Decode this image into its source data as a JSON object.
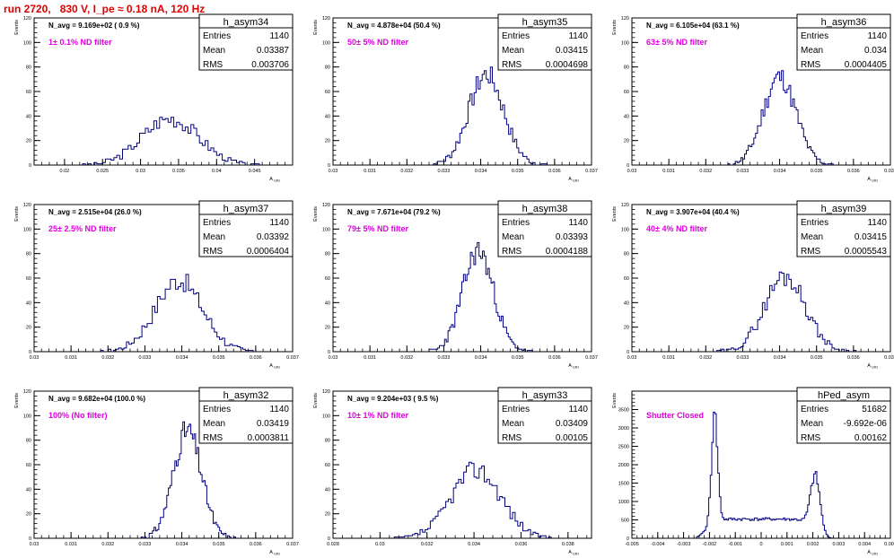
{
  "page_title": "run 2720,   830 V, I_pe ≈ 0.18 nA, 120 Hz",
  "stat_labels": {
    "entries": "Entries",
    "mean": "Mean",
    "rms": "RMS"
  },
  "colors": {
    "hist": "#000080",
    "annotation": "#e000e0",
    "title": "#e00000",
    "frame": "#000000"
  },
  "chart_data": [
    {
      "type": "histogram",
      "hist_name": "h_asym34",
      "n_avg": "N_avg = 9.169e+02 ( 0.9 %)",
      "filter": "1± 0.1% ND filter",
      "entries": "1140",
      "mean": "0.03387",
      "rms": "0.003706",
      "ylabel": "Events",
      "xlabel": "A_UID",
      "xlim": [
        0.016,
        0.05
      ],
      "ylim": [
        0,
        120
      ],
      "xticks": [
        0.02,
        0.025,
        0.03,
        0.035,
        0.04,
        0.045
      ],
      "xtick_labels": [
        "0.02",
        "0.025",
        "0.03",
        "0.035",
        "0.04",
        "0.045"
      ],
      "yticks": [
        0,
        20,
        40,
        60,
        80,
        100,
        120
      ],
      "grid": false,
      "shape": {
        "mu": 0.0339,
        "sigma": 0.0037,
        "peak": 38,
        "lo": 0.022,
        "hi": 0.046,
        "bins": 64,
        "seed": 3
      }
    },
    {
      "type": "histogram",
      "hist_name": "h_asym35",
      "n_avg": "N_avg = 4.878e+04 (50.4 %)",
      "filter": "50± 5% ND filter",
      "entries": "1140",
      "mean": "0.03415",
      "rms": "0.0004698",
      "ylabel": "Events",
      "xlabel": "A_UID",
      "xlim": [
        0.03,
        0.037
      ],
      "ylim": [
        0,
        120
      ],
      "xticks": [
        0.03,
        0.031,
        0.032,
        0.033,
        0.034,
        0.035,
        0.036,
        0.037
      ],
      "xtick_labels": [
        "0.03",
        "0.031",
        "0.032",
        "0.033",
        "0.034",
        "0.035",
        "0.036",
        "0.037"
      ],
      "yticks": [
        0,
        20,
        40,
        60,
        80,
        100,
        120
      ],
      "grid": false,
      "shape": {
        "mu": 0.03415,
        "sigma": 0.00047,
        "peak": 74,
        "lo": 0.0325,
        "hi": 0.0358,
        "bins": 60,
        "seed": 7
      }
    },
    {
      "type": "histogram",
      "hist_name": "h_asym36",
      "n_avg": "N_avg = 6.105e+04 (63.1 %)",
      "filter": "63± 5% ND filter",
      "entries": "1140",
      "mean": "0.034",
      "rms": "0.0004405",
      "ylabel": "Events",
      "xlabel": "A_UID",
      "xlim": [
        0.03,
        0.037
      ],
      "ylim": [
        0,
        120
      ],
      "xticks": [
        0.03,
        0.031,
        0.032,
        0.033,
        0.034,
        0.035,
        0.036,
        0.037
      ],
      "xtick_labels": [
        "0.03",
        "0.031",
        "0.032",
        "0.033",
        "0.034",
        "0.035",
        "0.036",
        "0.037"
      ],
      "yticks": [
        0,
        20,
        40,
        60,
        80,
        100,
        120
      ],
      "grid": false,
      "shape": {
        "mu": 0.034,
        "sigma": 0.00044,
        "peak": 72,
        "lo": 0.0326,
        "hi": 0.0356,
        "bins": 60,
        "seed": 11
      }
    },
    {
      "type": "histogram",
      "hist_name": "h_asym37",
      "n_avg": "N_avg = 2.515e+04 (26.0 %)",
      "filter": "25± 2.5% ND filter",
      "entries": "1140",
      "mean": "0.03392",
      "rms": "0.0006404",
      "ylabel": "Events",
      "xlabel": "A_UID",
      "xlim": [
        0.03,
        0.037
      ],
      "ylim": [
        0,
        120
      ],
      "xticks": [
        0.03,
        0.031,
        0.032,
        0.033,
        0.034,
        0.035,
        0.036,
        0.037
      ],
      "xtick_labels": [
        "0.03",
        "0.031",
        "0.032",
        "0.033",
        "0.034",
        "0.035",
        "0.036",
        "0.037"
      ],
      "yticks": [
        0,
        20,
        40,
        60,
        80,
        100,
        120
      ],
      "grid": false,
      "shape": {
        "mu": 0.03392,
        "sigma": 0.00064,
        "peak": 58,
        "lo": 0.0318,
        "hi": 0.036,
        "bins": 60,
        "seed": 17
      }
    },
    {
      "type": "histogram",
      "hist_name": "h_asym38",
      "n_avg": "N_avg = 7.671e+04 (79.2 %)",
      "filter": "79± 5% ND filter",
      "entries": "1140",
      "mean": "0.03393",
      "rms": "0.0004188",
      "ylabel": "Events",
      "xlabel": "A_UID",
      "xlim": [
        0.03,
        0.037
      ],
      "ylim": [
        0,
        120
      ],
      "xticks": [
        0.03,
        0.031,
        0.032,
        0.033,
        0.034,
        0.035,
        0.036,
        0.037
      ],
      "xtick_labels": [
        "0.03",
        "0.031",
        "0.032",
        "0.033",
        "0.034",
        "0.035",
        "0.036",
        "0.037"
      ],
      "yticks": [
        0,
        20,
        40,
        60,
        80,
        100,
        120
      ],
      "grid": false,
      "shape": {
        "mu": 0.03393,
        "sigma": 0.00042,
        "peak": 82,
        "lo": 0.0326,
        "hi": 0.0354,
        "bins": 60,
        "seed": 23
      }
    },
    {
      "type": "histogram",
      "hist_name": "h_asym39",
      "n_avg": "N_avg = 3.907e+04 (40.4 %)",
      "filter": "40± 4% ND filter",
      "entries": "1140",
      "mean": "0.03415",
      "rms": "0.0005543",
      "ylabel": "Events",
      "xlabel": "A_UID",
      "xlim": [
        0.03,
        0.037
      ],
      "ylim": [
        0,
        120
      ],
      "xticks": [
        0.03,
        0.031,
        0.032,
        0.033,
        0.034,
        0.035,
        0.036,
        0.037
      ],
      "xtick_labels": [
        "0.03",
        "0.031",
        "0.032",
        "0.033",
        "0.034",
        "0.035",
        "0.036",
        "0.037"
      ],
      "yticks": [
        0,
        20,
        40,
        60,
        80,
        100,
        120
      ],
      "grid": false,
      "shape": {
        "mu": 0.03415,
        "sigma": 0.00055,
        "peak": 62,
        "lo": 0.0323,
        "hi": 0.0362,
        "bins": 60,
        "seed": 29
      }
    },
    {
      "type": "histogram",
      "hist_name": "h_asym32",
      "n_avg": "N_avg = 9.682e+04 (100.0 %)",
      "filter": "100% (No filter)",
      "entries": "1140",
      "mean": "0.03419",
      "rms": "0.0003811",
      "ylabel": "Events",
      "xlabel": "A_UID",
      "xlim": [
        0.03,
        0.037
      ],
      "ylim": [
        0,
        120
      ],
      "xticks": [
        0.03,
        0.031,
        0.032,
        0.033,
        0.034,
        0.035,
        0.036,
        0.037
      ],
      "xtick_labels": [
        "0.03",
        "0.031",
        "0.032",
        "0.033",
        "0.034",
        "0.035",
        "0.036",
        "0.037"
      ],
      "yticks": [
        0,
        20,
        40,
        60,
        80,
        100,
        120
      ],
      "grid": false,
      "shape": {
        "mu": 0.03415,
        "sigma": 0.00038,
        "peak": 88,
        "lo": 0.0329,
        "hi": 0.0355,
        "bins": 60,
        "seed": 31
      }
    },
    {
      "type": "histogram",
      "hist_name": "h_asym33",
      "n_avg": "N_avg = 9.204e+03 ( 9.5 %)",
      "filter": "10± 1% ND filter",
      "entries": "1140",
      "mean": "0.03409",
      "rms": "0.00105",
      "ylabel": "Events",
      "xlabel": "A_UID",
      "xlim": [
        0.028,
        0.039
      ],
      "ylim": [
        0,
        120
      ],
      "xticks": [
        0.028,
        0.03,
        0.032,
        0.034,
        0.036,
        0.038
      ],
      "xtick_labels": [
        "0.028",
        "0.03",
        "0.032",
        "0.034",
        "0.036",
        "0.038"
      ],
      "yticks": [
        0,
        20,
        40,
        60,
        80,
        100,
        120
      ],
      "grid": false,
      "shape": {
        "mu": 0.03409,
        "sigma": 0.00105,
        "peak": 56,
        "lo": 0.0305,
        "hi": 0.0375,
        "bins": 64,
        "seed": 37
      }
    },
    {
      "type": "histogram",
      "hist_name": "hPed_asym",
      "n_avg": "",
      "filter": "Shutter Closed",
      "entries": "51682",
      "mean": "-9.692e-06",
      "rms": "0.00162",
      "ylabel": "Events",
      "xlabel": "A_UID",
      "xlim": [
        -0.005,
        0.005
      ],
      "ylim": [
        0,
        4000
      ],
      "xticks": [
        -0.005,
        -0.004,
        -0.003,
        -0.002,
        -0.001,
        0,
        0.001,
        0.002,
        0.003,
        0.004,
        0.005
      ],
      "xtick_labels": [
        "-0.005",
        "-0.004",
        "-0.003",
        "-0.002",
        "-0.001",
        "0",
        "0.001",
        "0.002",
        "0.003",
        "0.004",
        "0.005"
      ],
      "yticks": [
        0,
        500,
        1000,
        1500,
        2000,
        2500,
        3000,
        3500
      ],
      "grid": false,
      "shape": {
        "type": "bimodal",
        "lo": -0.0025,
        "hi": 0.0028,
        "bins": 90,
        "seed": 41,
        "peaks": [
          {
            "mu": -0.0018,
            "sigma": 0.00012,
            "amp": 2900
          },
          {
            "mu": 0.0021,
            "sigma": 0.00018,
            "amp": 1450
          }
        ],
        "base": 520,
        "spike": {
          "x": -0.00183,
          "y": 3430
        }
      }
    }
  ]
}
